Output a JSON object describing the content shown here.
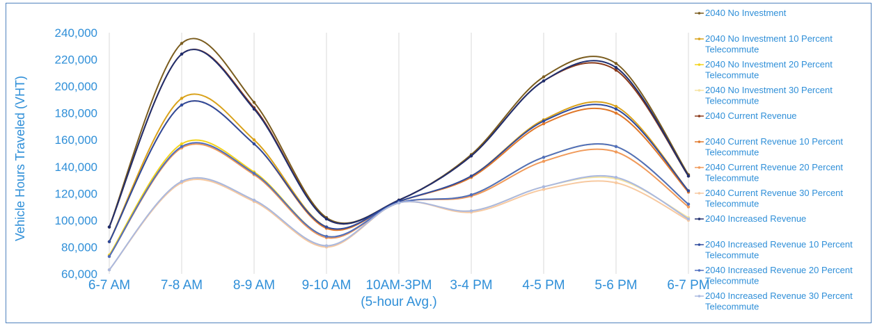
{
  "chart_data": {
    "type": "line",
    "title": "",
    "ylabel": "Vehicle Hours Traveled (VHT)",
    "xlabel": "",
    "ylim": [
      60000,
      240000
    ],
    "yticks": [
      "60,000",
      "80,000",
      "100,000",
      "120,000",
      "140,000",
      "160,000",
      "180,000",
      "200,000",
      "220,000",
      "240,000"
    ],
    "categories": [
      "6-7 AM",
      "7-8 AM",
      "8-9 AM",
      "9-10 AM",
      "10AM-3PM",
      "3-4 PM",
      "4-5 PM",
      "5-6 PM",
      "6-7 PM"
    ],
    "category_sublabel": "(5-hour Avg.)",
    "legend_position": "right",
    "grid": "vertical",
    "series": [
      {
        "name": "2040 No Investment",
        "color": "#7a5c1e",
        "values": [
          95000,
          232000,
          188000,
          102000,
          115000,
          149000,
          207000,
          217000,
          134000
        ]
      },
      {
        "name": "2040 No Investment 10 Percent Telecommute",
        "color": "#d9a21b",
        "values": [
          84000,
          191000,
          160000,
          95000,
          114000,
          133000,
          175000,
          185000,
          122000
        ]
      },
      {
        "name": "2040 No Investment 20 Percent Telecommute",
        "color": "#f2d21b",
        "values": [
          74000,
          157000,
          136000,
          88000,
          113000,
          119000,
          147000,
          155000,
          112000
        ]
      },
      {
        "name": "2040 No Investment 30 Percent Telecommute",
        "color": "#f5e3a0",
        "values": [
          63000,
          129000,
          115000,
          81000,
          113000,
          107000,
          125000,
          131000,
          102000
        ]
      },
      {
        "name": "2040 Current Revenue",
        "color": "#8a3a1a",
        "values": [
          95000,
          224000,
          184000,
          101000,
          115000,
          148000,
          204000,
          212000,
          133000
        ]
      },
      {
        "name": "2040 Current Revenue 10 Percent Telecommute",
        "color": "#e0782a",
        "values": [
          84000,
          186000,
          157000,
          94000,
          114000,
          132000,
          172000,
          180000,
          121000
        ]
      },
      {
        "name": "2040 Current Revenue 20 Percent Telecommute",
        "color": "#f09a5a",
        "values": [
          73000,
          154000,
          134000,
          87000,
          113000,
          118000,
          144000,
          151000,
          110000
        ]
      },
      {
        "name": "2040 Current Revenue 30 Percent Telecommute",
        "color": "#f7c9a0",
        "values": [
          63000,
          128000,
          114000,
          80000,
          113000,
          106000,
          123000,
          128000,
          100000
        ]
      },
      {
        "name": "2040 Increased Revenue",
        "color": "#1f2e6e",
        "values": [
          95000,
          224000,
          183000,
          101000,
          115000,
          148000,
          204000,
          214000,
          133000
        ]
      },
      {
        "name": "2040 Increased Revenue 10 Percent Telecommute",
        "color": "#2e4b9e",
        "values": [
          84000,
          186000,
          157000,
          95000,
          114000,
          133000,
          174000,
          183000,
          122000
        ]
      },
      {
        "name": "2040 Increased Revenue 20 Percent Telecommute",
        "color": "#4f6fc0",
        "values": [
          73000,
          155000,
          135000,
          88000,
          113000,
          119000,
          147000,
          155000,
          112000
        ]
      },
      {
        "name": "2040 Increased Revenue 30 Percent Telecommute",
        "color": "#a9b8e0",
        "values": [
          63000,
          129000,
          115000,
          81000,
          113000,
          107000,
          125000,
          132000,
          101000
        ]
      }
    ]
  }
}
